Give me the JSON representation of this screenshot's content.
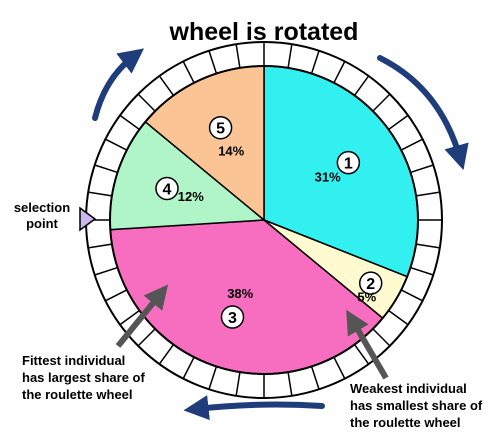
{
  "title": "wheel is rotated",
  "selection_point": [
    "selection",
    "point"
  ],
  "fittest_note": [
    "Fittest individual",
    "has largest share of",
    "the roulette wheel"
  ],
  "weakest_note": [
    "Weakest individual",
    "has smallest share of",
    "the roulette wheel"
  ],
  "colors": {
    "arrow": "#1f3d7a",
    "pointer": "#c9b8f0",
    "outline": "#000000",
    "annotation_arrow": "#555555"
  },
  "chart_data": {
    "type": "pie",
    "slices": [
      {
        "label": "1",
        "value": 31,
        "display": "31%",
        "color": "#33f0f0"
      },
      {
        "label": "2",
        "value": 5,
        "display": "5%",
        "color": "#fffad0"
      },
      {
        "label": "3",
        "value": 38,
        "display": "38%",
        "color": "#f76ec0"
      },
      {
        "label": "4",
        "value": 12,
        "display": "12%",
        "color": "#b0f5c8"
      },
      {
        "label": "5",
        "value": 14,
        "display": "14%",
        "color": "#fbc494"
      }
    ]
  }
}
